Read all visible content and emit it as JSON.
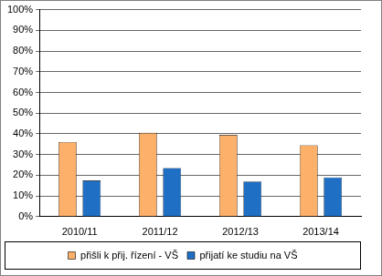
{
  "chart_data": {
    "type": "bar",
    "categories": [
      "2010/11",
      "2011/12",
      "2012/13",
      "2013/14"
    ],
    "series": [
      {
        "name": "přišli k přij. řízení - VŠ",
        "color": "#fdb06a",
        "values": [
          36,
          40.5,
          39.5,
          34.5
        ]
      },
      {
        "name": "přijatí ke studiu na VŠ",
        "color": "#1f6fc5",
        "values": [
          17.5,
          23.5,
          17,
          19
        ]
      }
    ],
    "ylim": [
      0,
      100
    ],
    "yticks": [
      {
        "value": 0,
        "label": "0%"
      },
      {
        "value": 10,
        "label": "10%"
      },
      {
        "value": 20,
        "label": "20%"
      },
      {
        "value": 30,
        "label": "30%"
      },
      {
        "value": 40,
        "label": "40%"
      },
      {
        "value": 50,
        "label": "50%"
      },
      {
        "value": 60,
        "label": "60%"
      },
      {
        "value": 70,
        "label": "70%"
      },
      {
        "value": 80,
        "label": "80%"
      },
      {
        "value": 90,
        "label": "90%"
      },
      {
        "value": 100,
        "label": "100%"
      }
    ],
    "grid": true,
    "legend": "bottom"
  }
}
